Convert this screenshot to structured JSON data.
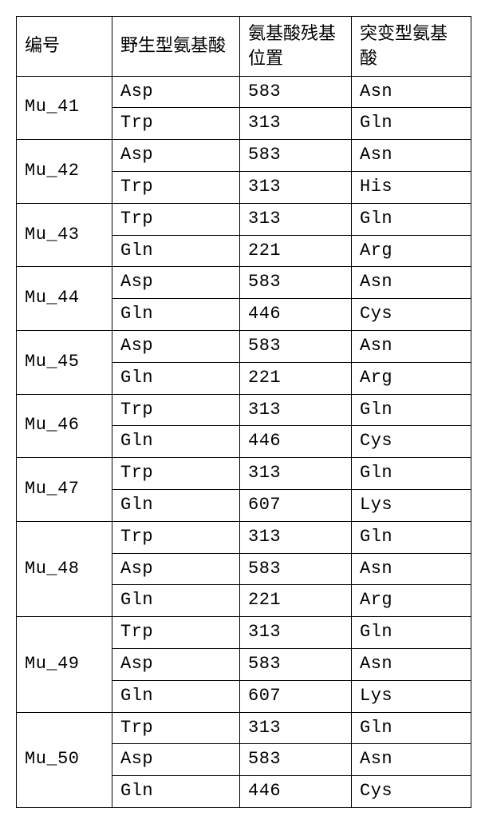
{
  "table": {
    "headers": {
      "id": "编号",
      "wt": "野生型氨基酸",
      "pos": "氨基酸残基位置",
      "mut": "突变型氨基酸"
    },
    "groups": [
      {
        "id": "Mu_41",
        "rows": [
          {
            "wt": "Asp",
            "pos": "583",
            "mut": "Asn"
          },
          {
            "wt": "Trp",
            "pos": "313",
            "mut": "Gln"
          }
        ]
      },
      {
        "id": "Mu_42",
        "rows": [
          {
            "wt": "Asp",
            "pos": "583",
            "mut": "Asn"
          },
          {
            "wt": "Trp",
            "pos": "313",
            "mut": "His"
          }
        ]
      },
      {
        "id": "Mu_43",
        "rows": [
          {
            "wt": "Trp",
            "pos": "313",
            "mut": "Gln"
          },
          {
            "wt": "Gln",
            "pos": "221",
            "mut": "Arg"
          }
        ]
      },
      {
        "id": "Mu_44",
        "rows": [
          {
            "wt": "Asp",
            "pos": "583",
            "mut": "Asn"
          },
          {
            "wt": "Gln",
            "pos": "446",
            "mut": "Cys"
          }
        ]
      },
      {
        "id": "Mu_45",
        "rows": [
          {
            "wt": "Asp",
            "pos": "583",
            "mut": "Asn"
          },
          {
            "wt": "Gln",
            "pos": "221",
            "mut": "Arg"
          }
        ]
      },
      {
        "id": "Mu_46",
        "rows": [
          {
            "wt": "Trp",
            "pos": "313",
            "mut": "Gln"
          },
          {
            "wt": "Gln",
            "pos": "446",
            "mut": "Cys"
          }
        ]
      },
      {
        "id": "Mu_47",
        "rows": [
          {
            "wt": "Trp",
            "pos": "313",
            "mut": "Gln"
          },
          {
            "wt": "Gln",
            "pos": "607",
            "mut": "Lys"
          }
        ]
      },
      {
        "id": "Mu_48",
        "rows": [
          {
            "wt": "Trp",
            "pos": "313",
            "mut": "Gln"
          },
          {
            "wt": "Asp",
            "pos": "583",
            "mut": "Asn"
          },
          {
            "wt": "Gln",
            "pos": "221",
            "mut": "Arg"
          }
        ]
      },
      {
        "id": "Mu_49",
        "rows": [
          {
            "wt": "Trp",
            "pos": "313",
            "mut": "Gln"
          },
          {
            "wt": "Asp",
            "pos": "583",
            "mut": "Asn"
          },
          {
            "wt": "Gln",
            "pos": "607",
            "mut": "Lys"
          }
        ]
      },
      {
        "id": "Mu_50",
        "rows": [
          {
            "wt": "Trp",
            "pos": "313",
            "mut": "Gln"
          },
          {
            "wt": "Asp",
            "pos": "583",
            "mut": "Asn"
          },
          {
            "wt": "Gln",
            "pos": "446",
            "mut": "Cys"
          }
        ]
      }
    ]
  }
}
